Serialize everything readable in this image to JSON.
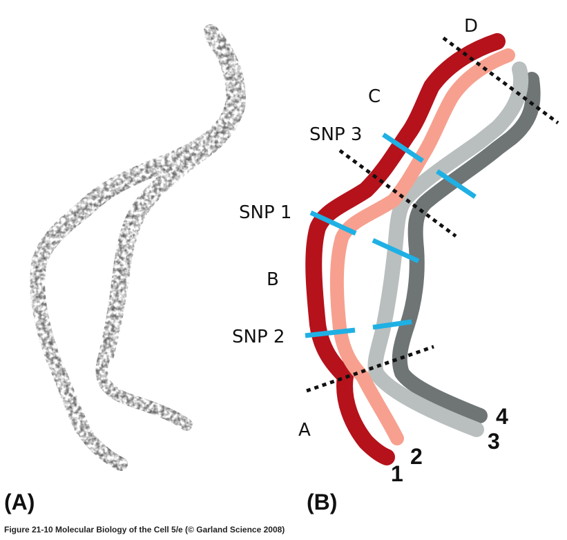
{
  "panels": {
    "a": "(A)",
    "b": "(B)"
  },
  "regions": {
    "a": "A",
    "b": "B",
    "c": "C",
    "d": "D"
  },
  "snps": {
    "snp1": "SNP 1",
    "snp2": "SNP 2",
    "snp3": "SNP 3"
  },
  "strands": {
    "s1": "1",
    "s2": "2",
    "s3": "3",
    "s4": "4"
  },
  "caption": "Figure 21-10  Molecular Biology of the Cell 5/e (© Garland Science 2008)",
  "colors": {
    "strand1": "#b5121b",
    "strand2": "#f7a08f",
    "strand3": "#b9bfbe",
    "strand4": "#6f7575",
    "snp_marker": "#1fb0e4",
    "crossover_line": "#111111",
    "micrograph": "#3a3a3a"
  }
}
